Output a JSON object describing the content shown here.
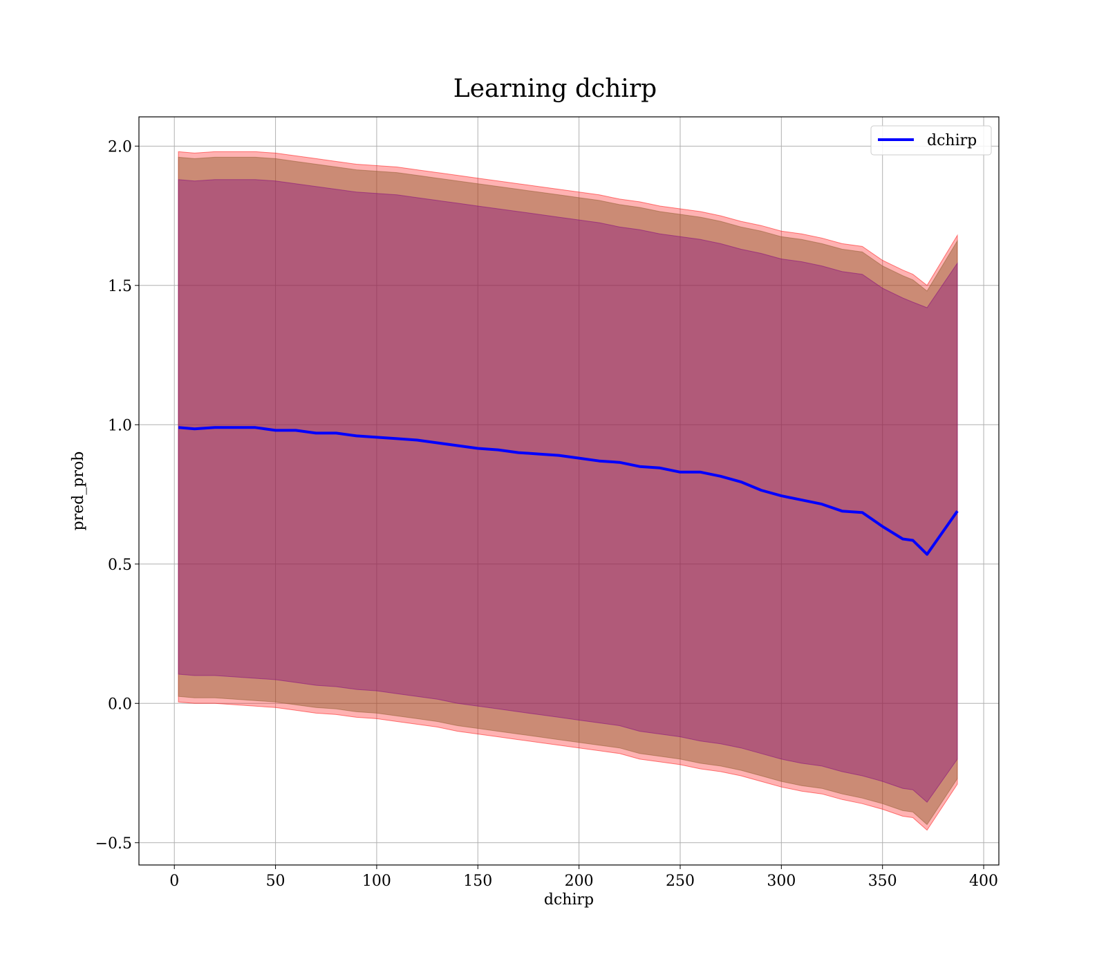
{
  "chart_data": {
    "type": "line",
    "title": "Learning dchirp",
    "xlabel": "dchirp",
    "ylabel": "pred_prob",
    "xlim": [
      -17.5,
      407.5
    ],
    "ylim": [
      -0.58,
      2.105
    ],
    "xticks": [
      0,
      50,
      100,
      150,
      200,
      250,
      300,
      350,
      400
    ],
    "xtick_labels": [
      "0",
      "50",
      "100",
      "150",
      "200",
      "250",
      "300",
      "350",
      "400"
    ],
    "yticks": [
      -0.5,
      0.0,
      0.5,
      1.0,
      1.5,
      2.0
    ],
    "ytick_labels": [
      "−0.5",
      "0.0",
      "0.5",
      "1.0",
      "1.5",
      "2.0"
    ],
    "grid": true,
    "legend_position": "upper right",
    "colors": {
      "line": "#0000ff",
      "outer_band": "#ff0000",
      "middle_band": "#8b5a2b",
      "inner_band": "#800080"
    },
    "series": [
      {
        "name": "dchirp",
        "x": [
          2,
          10,
          20,
          30,
          40,
          50,
          60,
          70,
          80,
          90,
          100,
          110,
          120,
          130,
          140,
          150,
          160,
          170,
          180,
          190,
          200,
          210,
          220,
          230,
          240,
          250,
          260,
          270,
          280,
          290,
          300,
          310,
          320,
          330,
          340,
          350,
          360,
          365,
          372,
          387
        ],
        "y": [
          0.99,
          0.985,
          0.99,
          0.99,
          0.99,
          0.98,
          0.98,
          0.97,
          0.97,
          0.96,
          0.955,
          0.95,
          0.945,
          0.935,
          0.925,
          0.915,
          0.91,
          0.9,
          0.895,
          0.89,
          0.88,
          0.87,
          0.865,
          0.85,
          0.845,
          0.83,
          0.83,
          0.815,
          0.795,
          0.765,
          0.745,
          0.73,
          0.715,
          0.69,
          0.685,
          0.635,
          0.59,
          0.585,
          0.535,
          0.69
        ]
      }
    ],
    "bands": [
      {
        "layer": "outer",
        "lower": [
          0.005,
          0.0,
          0.0,
          -0.005,
          -0.01,
          -0.015,
          -0.025,
          -0.035,
          -0.04,
          -0.05,
          -0.055,
          -0.065,
          -0.075,
          -0.085,
          -0.1,
          -0.11,
          -0.12,
          -0.13,
          -0.14,
          -0.15,
          -0.16,
          -0.17,
          -0.18,
          -0.2,
          -0.21,
          -0.22,
          -0.235,
          -0.245,
          -0.26,
          -0.28,
          -0.3,
          -0.315,
          -0.325,
          -0.345,
          -0.36,
          -0.38,
          -0.405,
          -0.41,
          -0.455,
          -0.29
        ],
        "upper": [
          1.98,
          1.975,
          1.98,
          1.98,
          1.98,
          1.975,
          1.965,
          1.955,
          1.945,
          1.935,
          1.93,
          1.925,
          1.915,
          1.905,
          1.895,
          1.885,
          1.875,
          1.865,
          1.855,
          1.845,
          1.835,
          1.825,
          1.81,
          1.8,
          1.785,
          1.775,
          1.765,
          1.75,
          1.73,
          1.715,
          1.695,
          1.685,
          1.67,
          1.65,
          1.64,
          1.59,
          1.555,
          1.54,
          1.5,
          1.68
        ]
      },
      {
        "layer": "middle",
        "lower": [
          0.025,
          0.02,
          0.02,
          0.015,
          0.01,
          0.005,
          -0.005,
          -0.015,
          -0.02,
          -0.03,
          -0.035,
          -0.045,
          -0.055,
          -0.065,
          -0.08,
          -0.09,
          -0.1,
          -0.11,
          -0.12,
          -0.13,
          -0.14,
          -0.15,
          -0.16,
          -0.18,
          -0.19,
          -0.2,
          -0.215,
          -0.225,
          -0.24,
          -0.26,
          -0.28,
          -0.295,
          -0.305,
          -0.325,
          -0.34,
          -0.36,
          -0.385,
          -0.39,
          -0.435,
          -0.27
        ],
        "upper": [
          1.96,
          1.955,
          1.96,
          1.96,
          1.96,
          1.955,
          1.945,
          1.935,
          1.925,
          1.915,
          1.91,
          1.905,
          1.895,
          1.885,
          1.875,
          1.865,
          1.855,
          1.845,
          1.835,
          1.825,
          1.815,
          1.805,
          1.79,
          1.78,
          1.765,
          1.755,
          1.745,
          1.73,
          1.71,
          1.695,
          1.675,
          1.665,
          1.65,
          1.63,
          1.62,
          1.57,
          1.535,
          1.52,
          1.48,
          1.66
        ]
      },
      {
        "layer": "inner",
        "lower": [
          0.105,
          0.1,
          0.1,
          0.095,
          0.09,
          0.085,
          0.075,
          0.065,
          0.06,
          0.05,
          0.045,
          0.035,
          0.025,
          0.015,
          0.0,
          -0.01,
          -0.02,
          -0.03,
          -0.04,
          -0.05,
          -0.06,
          -0.07,
          -0.08,
          -0.1,
          -0.11,
          -0.12,
          -0.135,
          -0.145,
          -0.16,
          -0.18,
          -0.2,
          -0.215,
          -0.225,
          -0.245,
          -0.26,
          -0.28,
          -0.305,
          -0.31,
          -0.355,
          -0.2
        ],
        "upper": [
          1.88,
          1.875,
          1.88,
          1.88,
          1.88,
          1.875,
          1.865,
          1.855,
          1.845,
          1.835,
          1.83,
          1.825,
          1.815,
          1.805,
          1.795,
          1.785,
          1.775,
          1.765,
          1.755,
          1.745,
          1.735,
          1.725,
          1.71,
          1.7,
          1.685,
          1.675,
          1.665,
          1.65,
          1.63,
          1.615,
          1.595,
          1.585,
          1.57,
          1.55,
          1.54,
          1.49,
          1.455,
          1.44,
          1.42,
          1.58
        ]
      }
    ]
  }
}
